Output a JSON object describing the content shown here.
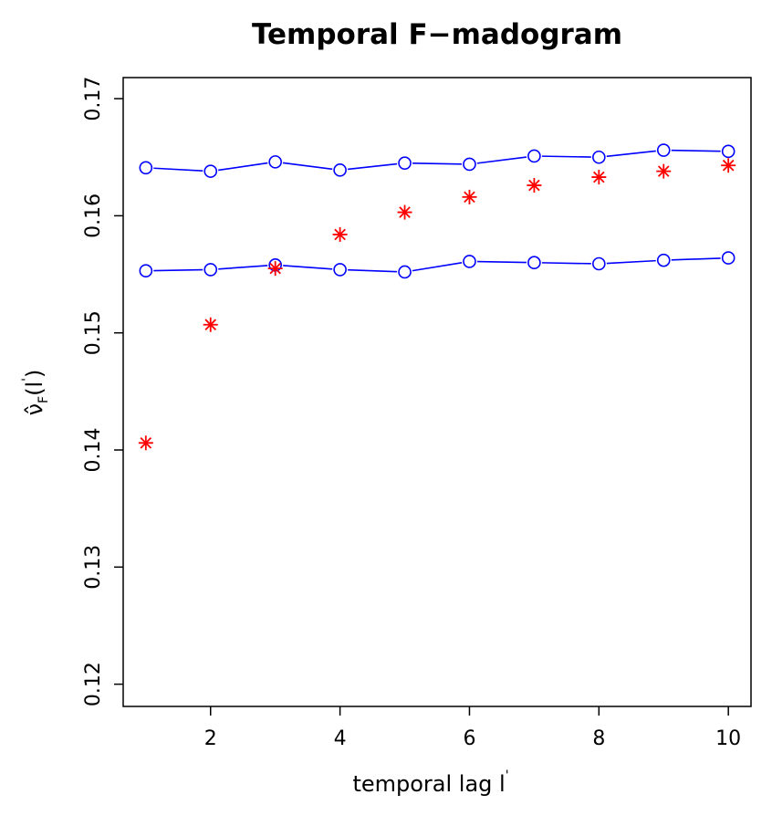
{
  "chart_data": {
    "type": "scatter",
    "title": "Temporal F−madogram",
    "xlabel": "temporal lag l",
    "xlabel_prime": "'",
    "ylabel": {
      "symbol": "ν̂",
      "subscript": "F",
      "open": "(",
      "arg": "l",
      "prime": "'",
      "close": ")"
    },
    "xlim": [
      0.65,
      10.35
    ],
    "ylim": [
      0.1181,
      0.1718
    ],
    "x_ticks": [
      2,
      4,
      6,
      8,
      10
    ],
    "x_tick_labels": [
      "2",
      "4",
      "6",
      "8",
      "10"
    ],
    "y_ticks": [
      0.12,
      0.13,
      0.14,
      0.15,
      0.16,
      0.17
    ],
    "y_tick_labels": [
      "0.12",
      "0.13",
      "0.14",
      "0.15",
      "0.16",
      "0.17"
    ],
    "grid": false,
    "x": [
      1,
      2,
      3,
      4,
      5,
      6,
      7,
      8,
      9,
      10
    ],
    "series": [
      {
        "role": "upper-band",
        "marker": "circle",
        "line": true,
        "color": "#0000ff",
        "values": [
          0.1641,
          0.1638,
          0.1646,
          0.1639,
          0.1645,
          0.1644,
          0.1651,
          0.165,
          0.1656,
          0.1655
        ]
      },
      {
        "role": "lower-band",
        "marker": "circle",
        "line": true,
        "color": "#0000ff",
        "values": [
          0.1553,
          0.1554,
          0.1558,
          0.1554,
          0.1552,
          0.1561,
          0.156,
          0.1559,
          0.1562,
          0.1564
        ]
      },
      {
        "role": "estimate",
        "marker": "asterisk",
        "line": false,
        "color": "#ff0000",
        "values": [
          0.1406,
          0.1507,
          0.1555,
          0.1584,
          0.1603,
          0.1616,
          0.1626,
          0.1633,
          0.1638,
          0.1643
        ]
      }
    ]
  }
}
